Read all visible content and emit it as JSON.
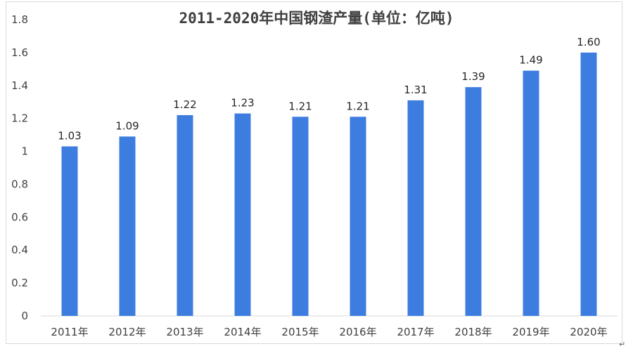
{
  "chart_data": {
    "type": "bar",
    "title": "2011-2020年中国钢渣产量(单位：亿吨)",
    "categories": [
      "2011年",
      "2012年",
      "2013年",
      "2014年",
      "2015年",
      "2016年",
      "2017年",
      "2018年",
      "2019年",
      "2020年"
    ],
    "values": [
      1.03,
      1.09,
      1.22,
      1.23,
      1.21,
      1.21,
      1.31,
      1.39,
      1.49,
      1.6
    ],
    "value_labels": [
      "1.03",
      "1.09",
      "1.22",
      "1.23",
      "1.21",
      "1.21",
      "1.31",
      "1.39",
      "1.49",
      "1.60"
    ],
    "ylim": [
      0,
      1.8
    ],
    "yticks": [
      "0",
      "0.2",
      "0.4",
      "0.6",
      "0.8",
      "1",
      "1.2",
      "1.4",
      "1.6",
      "1.8"
    ],
    "grid": false,
    "legend": "none",
    "bar_color": "#3d7de0"
  },
  "corner_mark": "↵"
}
